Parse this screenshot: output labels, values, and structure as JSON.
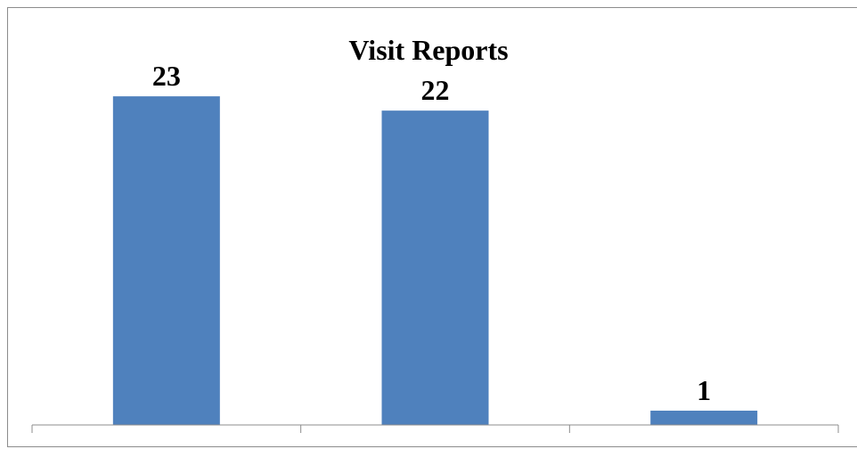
{
  "chart_data": {
    "type": "bar",
    "title": "Visit Reports",
    "categories": [
      "",
      "",
      ""
    ],
    "values": [
      23,
      22,
      1
    ],
    "ylim": [
      0,
      26
    ],
    "grid": false,
    "legend": "none",
    "colors": {
      "bar": "#4f81bd",
      "axis": "#8c8c8c",
      "border": "#8c8c8c"
    }
  }
}
